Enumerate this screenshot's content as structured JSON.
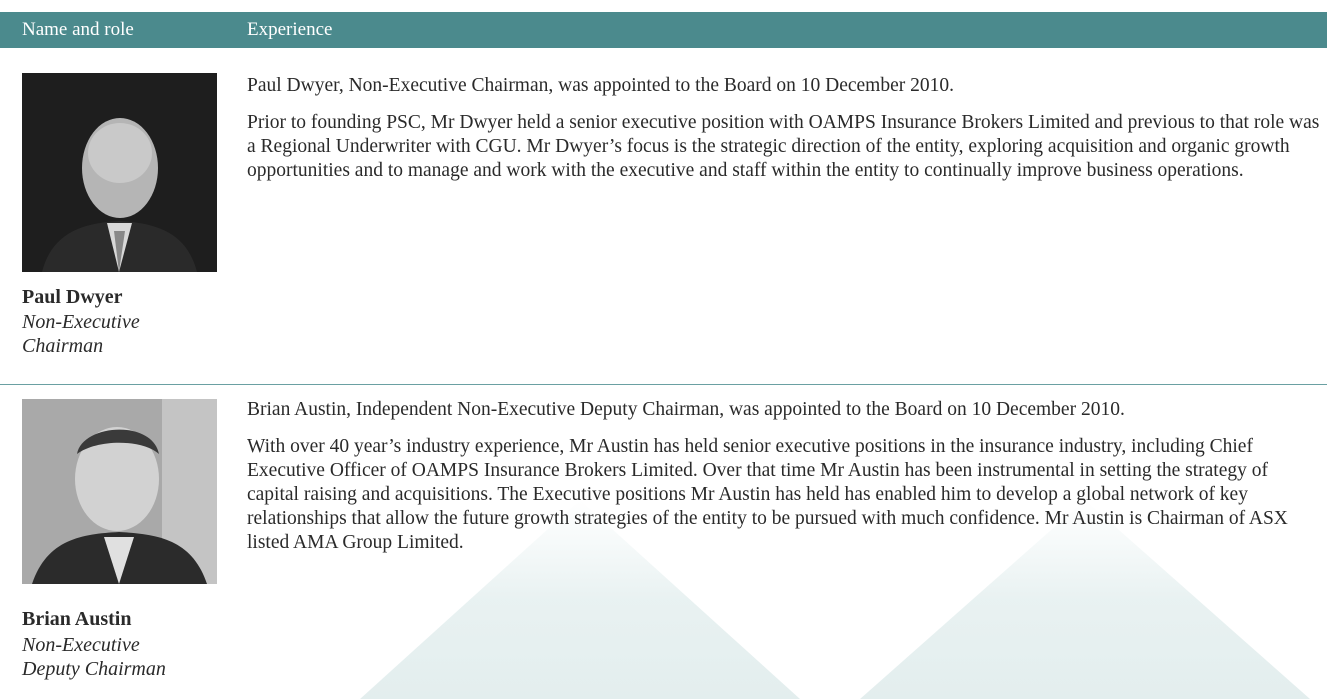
{
  "table": {
    "columns": [
      "Name and role",
      "Experience"
    ],
    "rows": [
      {
        "name": "Paul Dwyer",
        "role": "Non-Executive Chairman",
        "paragraphs": [
          "Paul Dwyer, Non-Executive Chairman, was appointed to the Board on 10 December 2010.",
          "Prior to founding PSC, Mr Dwyer held a senior executive position with OAMPS Insurance Brokers Limited and previous to that role was a Regional Underwriter with CGU. Mr Dwyer’s focus is the strategic direction of the entity, exploring acquisition and organic growth opportunities and to manage and work with the executive and staff within the entity to continually improve business operations."
        ]
      },
      {
        "name": "Brian Austin",
        "role": "Non-Executive Deputy Chairman",
        "paragraphs": [
          "Brian Austin, Independent Non-Executive Deputy Chairman, was appointed to the Board on 10 December 2010.",
          "With over 40 year’s industry experience, Mr Austin has held senior executive positions in the insurance industry, including Chief Executive Officer of OAMPS Insurance Brokers Limited. Over that time Mr Austin has been instrumental in setting the strategy of capital raising and acquisitions. The Executive positions Mr Austin has held has enabled him to develop a global network of key relationships that allow the future growth strategies of the entity to be pursued with much confidence. Mr Austin is Chairman of ASX listed AMA Group Limited."
        ]
      }
    ]
  }
}
